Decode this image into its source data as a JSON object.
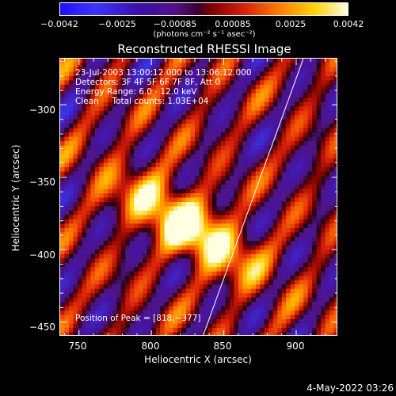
{
  "colorbar": {
    "ticks": [
      "−0.0042",
      "−0.0025",
      "−0.00085",
      "0.00085",
      "0.0025",
      "0.0042"
    ],
    "unit": "(photons cm⁻² s⁻¹ asec⁻²)"
  },
  "plot": {
    "title": "Reconstructed RHESSI Image",
    "info": {
      "time": "23-Jul-2003 13:00:12.000 to 13:06:12.000",
      "detectors": "Detectors: 3F 4F 5F 6F 7F 8F, Att 0",
      "energy": "Energy Range: 6.0 - 12.0 keV",
      "clean": "Clean     Total counts: 1.03E+04"
    },
    "peak": "Position of Peak = [818,−377]",
    "xlabel": "Heliocentric X (arcsec)",
    "ylabel": "Heliocentric Y (arcsec)",
    "xticks": [
      "750",
      "800",
      "850",
      "900"
    ],
    "yticks": [
      "−300",
      "−350",
      "−400",
      "−450"
    ],
    "xlim": [
      737,
      929
    ],
    "ylim": [
      -460,
      -268
    ]
  },
  "footer": {
    "date": "4-May-2022 03:26"
  }
}
